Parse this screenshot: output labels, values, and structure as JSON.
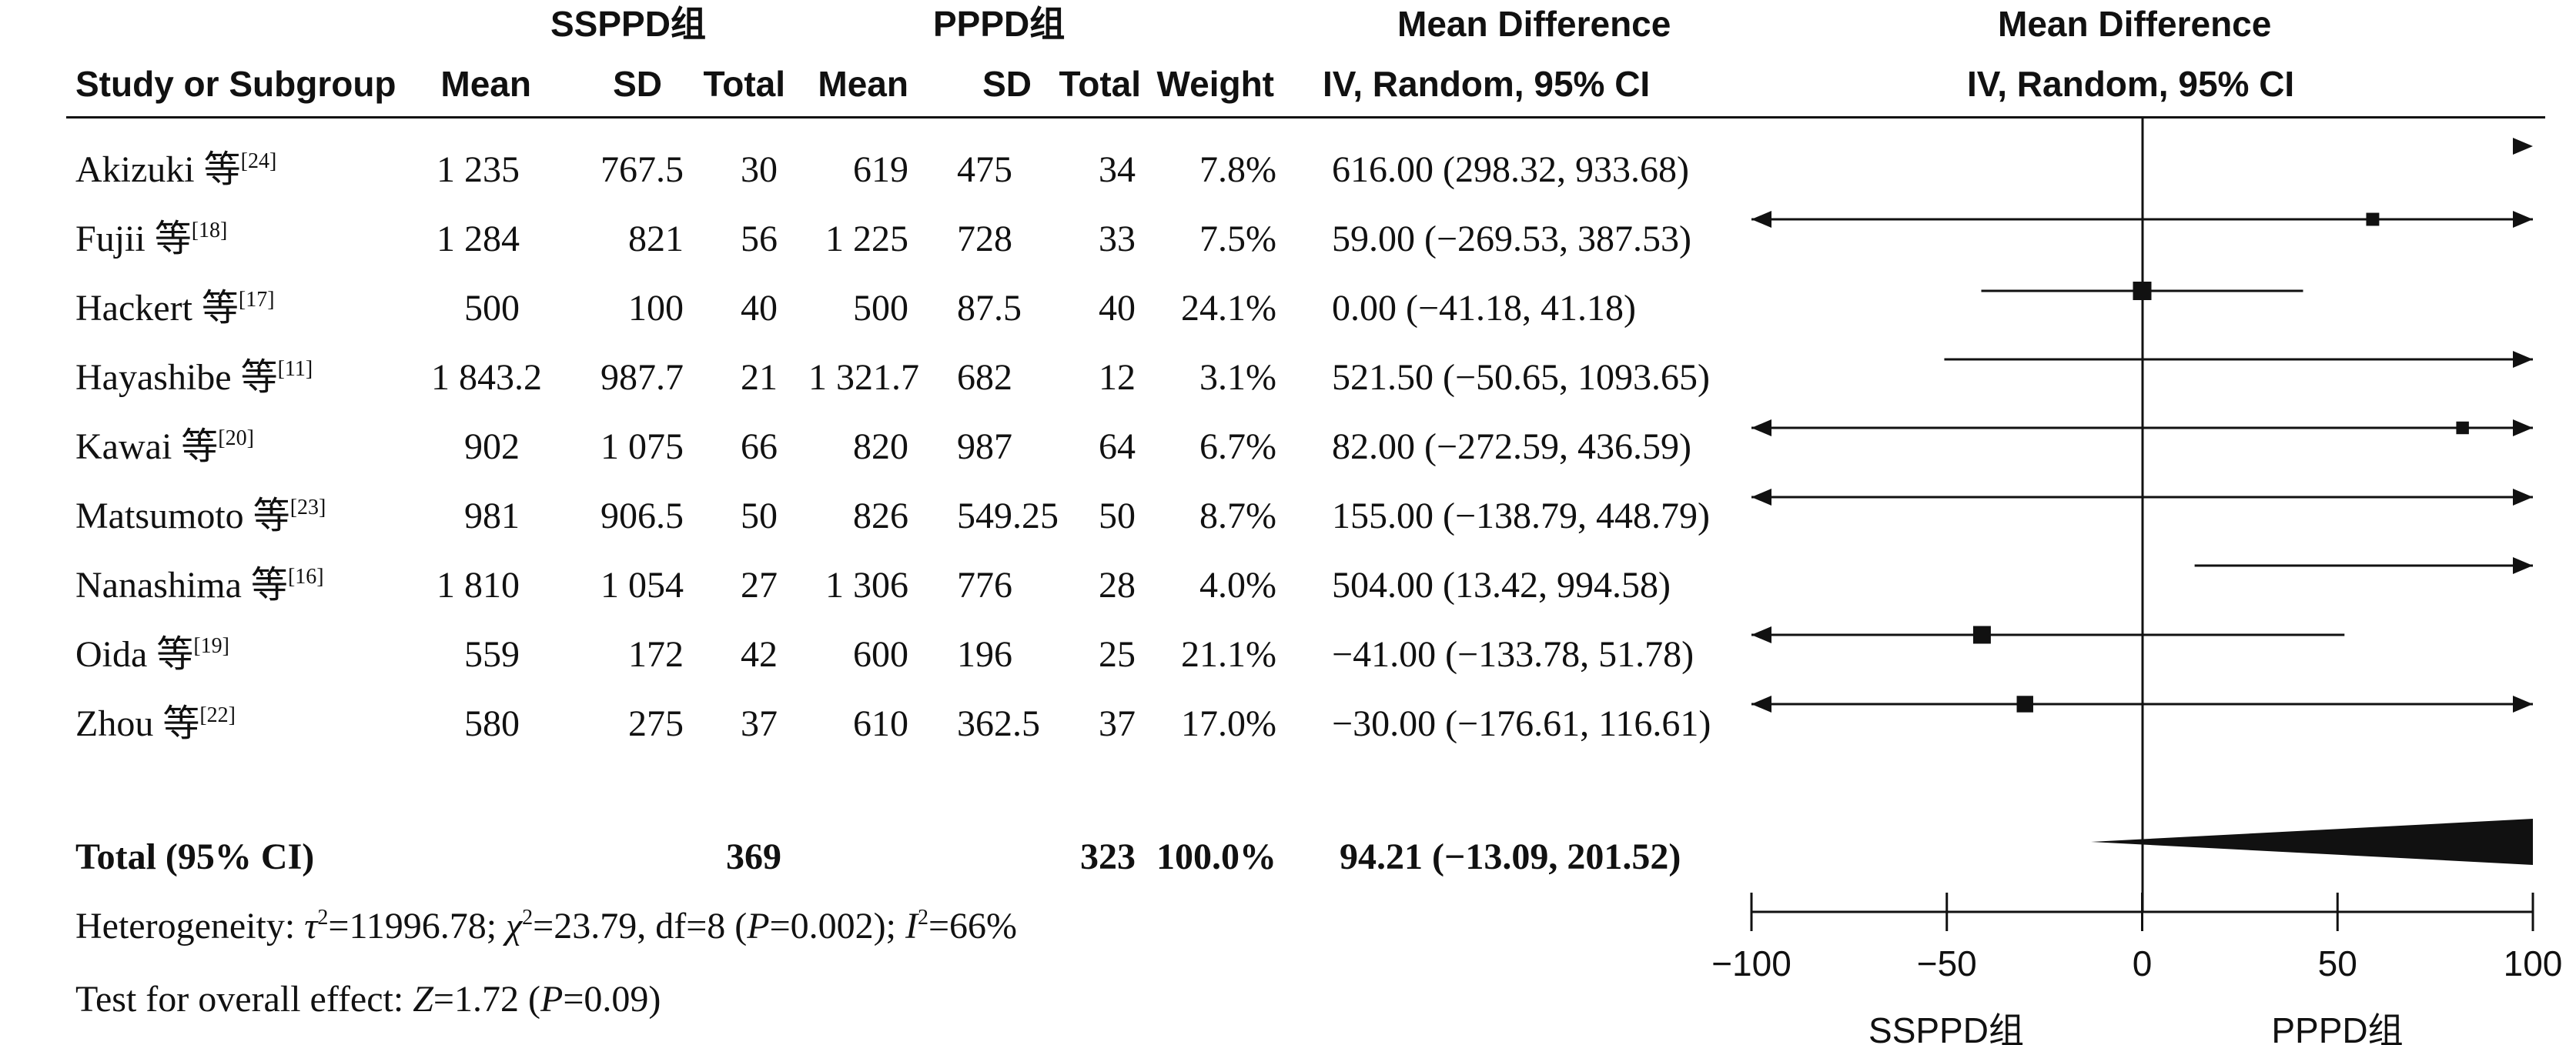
{
  "groups": {
    "experimental": "SSPPD组",
    "control": "PPPD组",
    "md_header_1": "Mean Difference",
    "md_header_2": "IV, Random, 95% CI",
    "plot_header_1": "Mean Difference",
    "plot_header_2": "IV, Random, 95% CI"
  },
  "columns": {
    "study": "Study or Subgroup",
    "mean1": "Mean",
    "sd1": "SD",
    "total1": "Total",
    "mean2": "Mean",
    "sd2": "SD",
    "total2": "Total",
    "weight": "Weight"
  },
  "studies": [
    {
      "name": "Akizuki 等",
      "ref": "[24]",
      "mean1": "1 235",
      "sd1": "767.5",
      "total1": "30",
      "mean2": "619",
      "sd2": "475",
      "total2": "34",
      "weight": "7.8%",
      "ci": "616.00 (298.32, 933.68)"
    },
    {
      "name": "Fujii 等",
      "ref": "[18]",
      "mean1": "1 284",
      "sd1": "821",
      "total1": "56",
      "mean2": "1 225",
      "sd2": "728",
      "total2": "33",
      "weight": "7.5%",
      "ci": "59.00 (−269.53, 387.53)"
    },
    {
      "name": "Hackert 等",
      "ref": "[17]",
      "mean1": "500",
      "sd1": "100",
      "total1": "40",
      "mean2": "500",
      "sd2": "87.5",
      "total2": "40",
      "weight": "24.1%",
      "ci": "0.00 (−41.18, 41.18)"
    },
    {
      "name": "Hayashibe 等",
      "ref": "[11]",
      "mean1": "1 843.2",
      "sd1": "987.7",
      "total1": "21",
      "mean2": "1 321.7",
      "sd2": "682",
      "total2": "12",
      "weight": "3.1%",
      "ci": "521.50 (−50.65, 1093.65)"
    },
    {
      "name": "Kawai 等",
      "ref": "[20]",
      "mean1": "902",
      "sd1": "1 075",
      "total1": "66",
      "mean2": "820",
      "sd2": "987",
      "total2": "64",
      "weight": "6.7%",
      "ci": "82.00 (−272.59, 436.59)"
    },
    {
      "name": "Matsumoto 等",
      "ref": "[23]",
      "mean1": "981",
      "sd1": "906.5",
      "total1": "50",
      "mean2": "826",
      "sd2": "549.25",
      "total2": "50",
      "weight": "8.7%",
      "ci": "155.00 (−138.79, 448.79)"
    },
    {
      "name": "Nanashima 等",
      "ref": "[16]",
      "mean1": "1 810",
      "sd1": "1 054",
      "total1": "27",
      "mean2": "1 306",
      "sd2": "776",
      "total2": "28",
      "weight": "4.0%",
      "ci": "504.00 (13.42, 994.58)"
    },
    {
      "name": "Oida 等",
      "ref": "[19]",
      "mean1": "559",
      "sd1": "172",
      "total1": "42",
      "mean2": "600",
      "sd2": "196",
      "total2": "25",
      "weight": "21.1%",
      "ci": "−41.00 (−133.78, 51.78)"
    },
    {
      "name": "Zhou 等",
      "ref": "[22]",
      "mean1": "580",
      "sd1": "275",
      "total1": "37",
      "mean2": "610",
      "sd2": "362.5",
      "total2": "37",
      "weight": "17.0%",
      "ci": "−30.00 (−176.61, 116.61)"
    }
  ],
  "total": {
    "label": "Total (95% CI)",
    "total1": "369",
    "total2": "323",
    "weight": "100.0%",
    "ci": "94.21 (−13.09, 201.52)"
  },
  "heterogeneity": {
    "prefix": "Heterogeneity: ",
    "tau": "τ",
    "tau_value": "=11996.78; ",
    "chi": "χ",
    "chi_value": "=23.79, df=8 (",
    "p": "P",
    "p_value": "=0.002); ",
    "i": "I",
    "i_value": "=66%",
    "sup2": "2"
  },
  "overall": {
    "prefix": "Test for overall effect: ",
    "z": "Z",
    "z_value": "=1.72 (",
    "p": "P",
    "p_value": "=0.09)"
  },
  "axis_footer": {
    "left": "SSPPD组",
    "right": "PPPD组"
  },
  "chart_data": {
    "type": "forest",
    "xlim": [
      -100,
      100
    ],
    "ticks": [
      -100,
      -50,
      0,
      50,
      100
    ],
    "tick_labels": [
      "−100",
      "−50",
      "0",
      "50",
      "100"
    ],
    "studies": [
      {
        "name": "Akizuki",
        "md": 616.0,
        "lo": 298.32,
        "hi": 933.68,
        "weight": 7.8
      },
      {
        "name": "Fujii",
        "md": 59.0,
        "lo": -269.53,
        "hi": 387.53,
        "weight": 7.5
      },
      {
        "name": "Hackert",
        "md": 0.0,
        "lo": -41.18,
        "hi": 41.18,
        "weight": 24.1
      },
      {
        "name": "Hayashibe",
        "md": 521.5,
        "lo": -50.65,
        "hi": 1093.65,
        "weight": 3.1
      },
      {
        "name": "Kawai",
        "md": 82.0,
        "lo": -272.59,
        "hi": 436.59,
        "weight": 6.7
      },
      {
        "name": "Matsumoto",
        "md": 155.0,
        "lo": -138.79,
        "hi": 448.79,
        "weight": 8.7
      },
      {
        "name": "Nanashima",
        "md": 504.0,
        "lo": 13.42,
        "hi": 994.58,
        "weight": 4.0
      },
      {
        "name": "Oida",
        "md": -41.0,
        "lo": -133.78,
        "hi": 51.78,
        "weight": 21.1
      },
      {
        "name": "Zhou",
        "md": -30.0,
        "lo": -176.61,
        "hi": 116.61,
        "weight": 17.0
      }
    ],
    "pooled": {
      "md": 94.21,
      "lo": -13.09,
      "hi": 201.52
    }
  }
}
